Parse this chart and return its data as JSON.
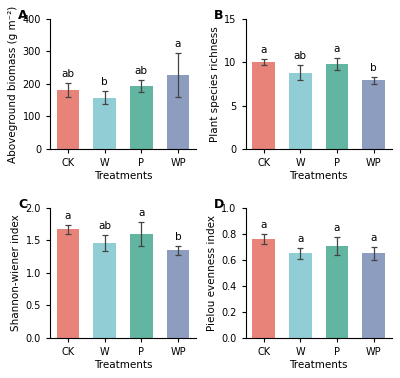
{
  "panels": [
    {
      "label": "A",
      "ylabel": "Aboveground biomass (g m⁻²)",
      "ylim": [
        0,
        400
      ],
      "yticks": [
        0,
        100,
        200,
        300,
        400
      ],
      "values": [
        182,
        158,
        193,
        228
      ],
      "errors": [
        22,
        20,
        18,
        68
      ],
      "sig_labels": [
        "ab",
        "b",
        "ab",
        "a"
      ]
    },
    {
      "label": "B",
      "ylabel": "Plant species richness",
      "ylim": [
        0,
        15
      ],
      "yticks": [
        0,
        5,
        10,
        15
      ],
      "values": [
        10.0,
        8.8,
        9.8,
        7.9
      ],
      "errors": [
        0.35,
        0.85,
        0.65,
        0.4
      ],
      "sig_labels": [
        "a",
        "ab",
        "a",
        "b"
      ]
    },
    {
      "label": "C",
      "ylabel": "Shannon-wiener index",
      "ylim": [
        0.0,
        2.0
      ],
      "yticks": [
        0.0,
        0.5,
        1.0,
        1.5,
        2.0
      ],
      "values": [
        1.67,
        1.46,
        1.6,
        1.35
      ],
      "errors": [
        0.07,
        0.12,
        0.18,
        0.07
      ],
      "sig_labels": [
        "a",
        "ab",
        "a",
        "b"
      ]
    },
    {
      "label": "D",
      "ylabel": "Pielou evenness index",
      "ylim": [
        0.0,
        1.0
      ],
      "yticks": [
        0.0,
        0.2,
        0.4,
        0.6,
        0.8,
        1.0
      ],
      "values": [
        0.76,
        0.65,
        0.71,
        0.65
      ],
      "errors": [
        0.04,
        0.04,
        0.07,
        0.05
      ],
      "sig_labels": [
        "a",
        "a",
        "a",
        "a"
      ]
    }
  ],
  "categories": [
    "CK",
    "W",
    "P",
    "WP"
  ],
  "xlabel": "Treatments",
  "bar_colors": [
    "#E8837A",
    "#90CDD4",
    "#62B5A0",
    "#8D9DC0"
  ],
  "error_color": "#444444",
  "background_color": "#ffffff",
  "sig_fontsize": 7.5,
  "tick_fontsize": 7,
  "label_fontsize": 7.5,
  "panel_label_fontsize": 9
}
